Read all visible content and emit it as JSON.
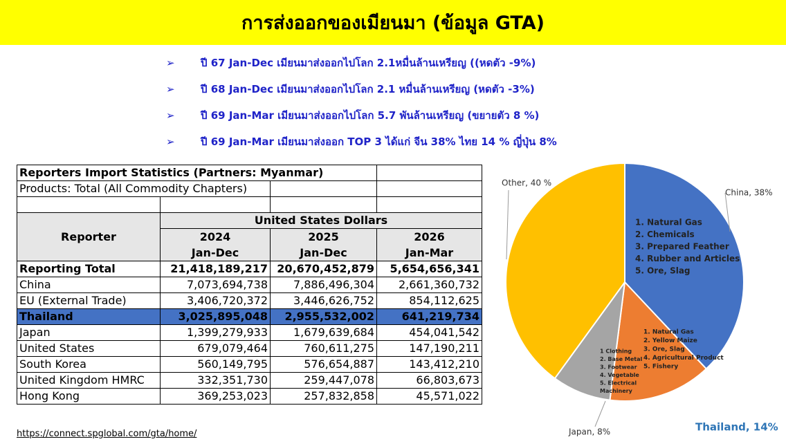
{
  "header": {
    "title": "การส่งออกของเมียนมา (ข้อมูล GTA)"
  },
  "bullets": [
    "ปี 67 Jan-Dec เมียนมาส่งออกไปโลก 2.1หมื่นล้านเหรียญ ((หดตัว -9%)",
    "ปี 68 Jan-Dec เมียนมาส่งออกไปโลก 2.1 หมื่นล้านเหรียญ (หดตัว -3%)",
    "ปี 69 Jan-Mar เมียนมาส่งออกไปโลก 5.7 พันล้านเหรียญ (ขยายตัว 8 %)",
    "ปี 69 Jan-Mar เมียนมาส่งออก TOP 3 ได้แก่ จีน 38% ไทย 14 % ญี่ปุ่น 8%"
  ],
  "table": {
    "title": "Reporters Import Statistics (Partners: Myanmar)",
    "subtitle": "Products: Total (All Commodity Chapters)",
    "reporter_header": "Reporter",
    "unit_header": "United States Dollars",
    "columns": [
      [
        "2024",
        "Jan-Dec"
      ],
      [
        "2025",
        "Jan-Dec"
      ],
      [
        "2026",
        "Jan-Mar"
      ]
    ],
    "rows": [
      [
        "Reporting Total",
        "21,418,189,217",
        "20,670,452,879",
        "5,654,656,341"
      ],
      [
        "China",
        "7,073,694,738",
        "7,886,496,304",
        "2,661,360,732"
      ],
      [
        "EU (External Trade)",
        "3,406,720,372",
        "3,446,626,752",
        "854,112,625"
      ],
      [
        "Thailand",
        "3,025,895,048",
        "2,955,532,002",
        "641,219,734"
      ],
      [
        "Japan",
        "1,399,279,933",
        "1,679,639,684",
        "454,041,542"
      ],
      [
        "United States",
        "679,079,464",
        "760,611,275",
        "147,190,211"
      ],
      [
        "South Korea",
        "560,149,795",
        "576,654,887",
        "143,412,210"
      ],
      [
        "United Kingdom HMRC",
        "332,351,730",
        "259,447,078",
        "66,803,673"
      ],
      [
        "Hong Kong",
        "369,253,023",
        "257,832,858",
        "45,571,022"
      ]
    ]
  },
  "chart_data": {
    "type": "pie",
    "categories": [
      "China, 38%",
      "Thailand, 14%",
      "Japan, 8%",
      "Other, 40 %"
    ],
    "values": [
      38,
      14,
      8,
      40
    ],
    "colors": [
      "#4472c4",
      "#ed7d31",
      "#a5a5a5",
      "#ffc000"
    ],
    "annotations": [
      [
        "1. Natural Gas",
        "2. Chemicals",
        "3. Prepared Feather",
        "4. Rubber and Articles",
        "5. Ore, Slag"
      ],
      [
        "1. Natural Gas",
        "2. Yellow Maize",
        "3. Ore, Slag",
        "4. Agricultural Product",
        "5. Fishery"
      ],
      [
        "1 Clothing",
        "2. Base Metal",
        "3. Footwear",
        "4. Vegetable",
        "5. Electrical",
        "Machinery"
      ]
    ]
  },
  "source": "https://connect.spglobal.com/gta/home/"
}
